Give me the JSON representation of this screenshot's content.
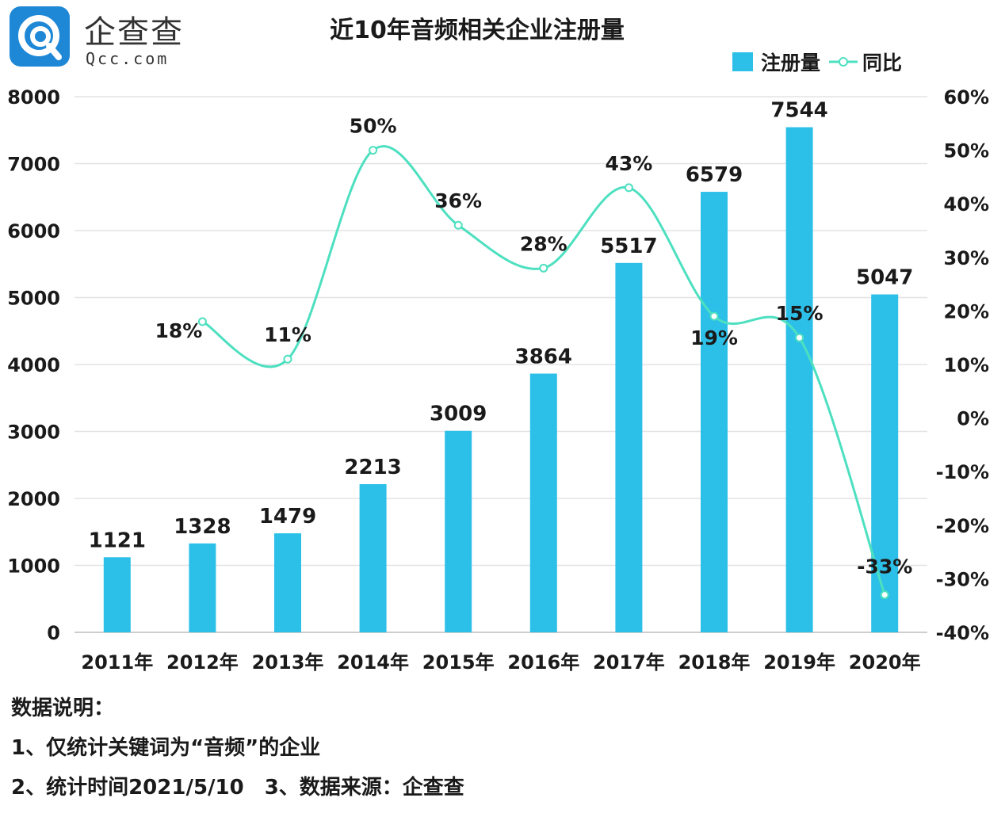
{
  "logo": {
    "name": "企查查",
    "url": "Qcc.com",
    "icon": "qcc-logo-icon",
    "color": "#1e88d6"
  },
  "colors": {
    "bar": "#2cc0e8",
    "line": "#4de0c0",
    "grid": "#e3e3e3"
  },
  "chart_data": {
    "type": "bar",
    "title": "近10年音频相关企业注册量",
    "categories": [
      "2011年",
      "2012年",
      "2013年",
      "2014年",
      "2015年",
      "2016年",
      "2017年",
      "2018年",
      "2019年",
      "2020年"
    ],
    "series": [
      {
        "name": "注册量",
        "type": "bar",
        "axis": "left",
        "values": [
          1121,
          1328,
          1479,
          2213,
          3009,
          3864,
          5517,
          6579,
          7544,
          5047
        ],
        "labels": [
          "1121",
          "1328",
          "1479",
          "2213",
          "3009",
          "3864",
          "5517",
          "6579",
          "7544",
          "5047"
        ]
      },
      {
        "name": "同比",
        "type": "line",
        "axis": "right",
        "values": [
          null,
          18,
          11,
          50,
          36,
          28,
          43,
          19,
          15,
          -33
        ],
        "labels": [
          "",
          "18%",
          "11%",
          "50%",
          "36%",
          "28%",
          "43%",
          "19%",
          "15%",
          "-33%"
        ]
      }
    ],
    "y_left": {
      "min": 0,
      "max": 8000,
      "ticks": [
        "0",
        "1000",
        "2000",
        "3000",
        "4000",
        "5000",
        "6000",
        "7000",
        "8000"
      ]
    },
    "y_right": {
      "min": -40,
      "max": 60,
      "ticks": [
        "-40%",
        "-30%",
        "-20%",
        "-10%",
        "0%",
        "10%",
        "20%",
        "30%",
        "40%",
        "50%",
        "60%"
      ]
    },
    "grid": true,
    "legend_position": "top-right"
  },
  "notes": {
    "heading": "数据说明：",
    "line1": "1、仅统计关键词为“音频”的企业",
    "line2": "2、统计时间2021/5/10　3、数据来源：企查查"
  }
}
